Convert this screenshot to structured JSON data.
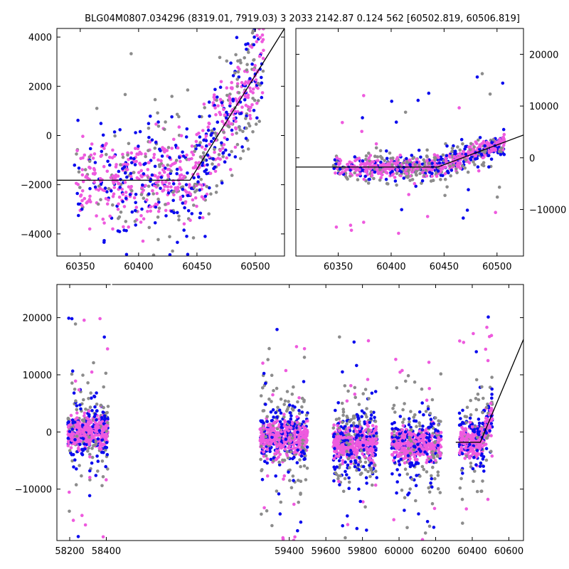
{
  "figure": {
    "title": "BLG04M0807.034296 (8319.01, 7919.03)   3 2033 2142.87 0.124 562 [60502.819, 60506.819]"
  },
  "colors": {
    "gray": "#8c8c8c",
    "blue": "#0a0aee",
    "magenta": "#ee5ade",
    "model": "#000000"
  },
  "chart_data": [
    {
      "type": "scatter",
      "panel": "top-left",
      "xlim": [
        60330,
        60525
      ],
      "ylim": [
        -4900,
        4350
      ],
      "xticks": [
        60350,
        60400,
        60450,
        60500
      ],
      "yticks": [
        -4000,
        -2000,
        0,
        2000,
        4000
      ],
      "ytick_side": "left",
      "model_line": [
        [
          60330,
          -1820
        ],
        [
          60444,
          -1820
        ],
        [
          60525,
          4350
        ]
      ]
    },
    {
      "type": "scatter",
      "panel": "top-right",
      "xlim": [
        60310,
        60525
      ],
      "ylim": [
        -19000,
        25000
      ],
      "xticks": [
        60350,
        60400,
        60450,
        60500
      ],
      "yticks": [
        -10000,
        0,
        10000,
        20000
      ],
      "ytick_side": "right",
      "model_line": [
        [
          60310,
          -1800
        ],
        [
          60444,
          -1800
        ],
        [
          60525,
          4400
        ]
      ]
    },
    {
      "type": "scatter",
      "panel": "bottom",
      "xlim": [
        58130,
        60680
      ],
      "ylim": [
        -19000,
        25800
      ],
      "xticks": [
        58200,
        58400,
        59400,
        59600,
        59800,
        60000,
        60200,
        60400,
        60600
      ],
      "yticks": [
        -10000,
        0,
        10000,
        20000
      ],
      "ytick_side": "left",
      "model_line": [
        [
          60310,
          -1800
        ],
        [
          60444,
          -1800
        ],
        [
          60680,
          16200
        ]
      ],
      "seasons": [
        [
          58190,
          58410
        ],
        [
          59240,
          59500
        ],
        [
          59640,
          59880
        ],
        [
          59960,
          60230
        ],
        [
          60330,
          60510
        ]
      ]
    }
  ]
}
